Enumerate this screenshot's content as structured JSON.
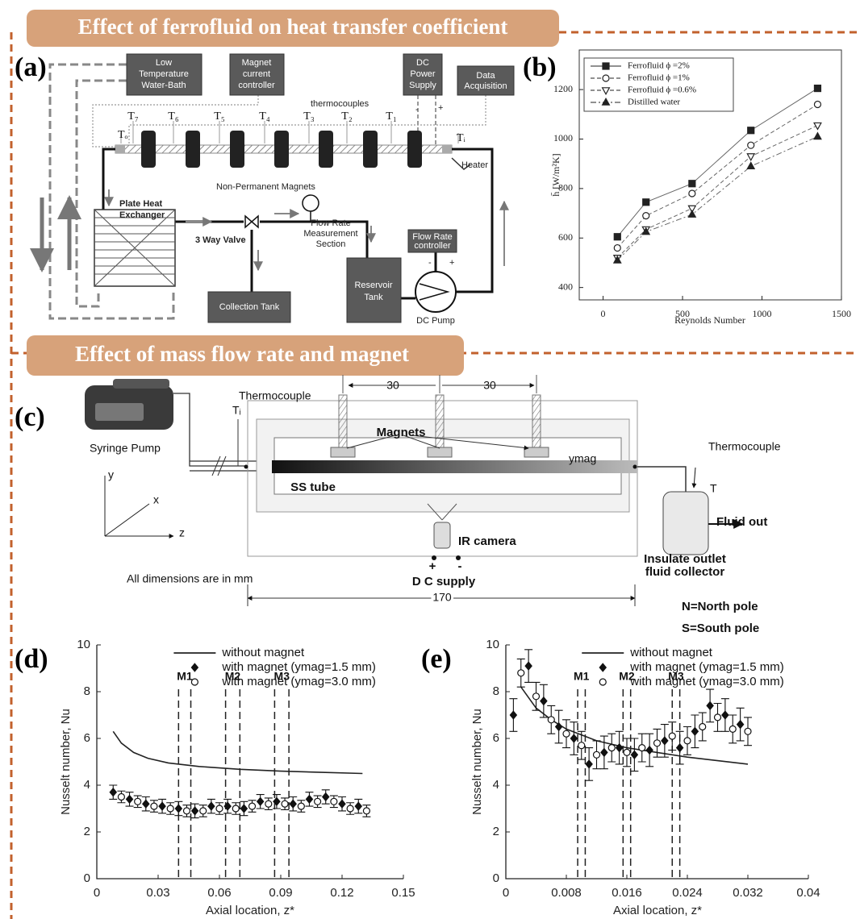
{
  "headers": [
    "Effect of ferrofluid on heat transfer coefficient",
    "Effect of mass flow rate and magnet"
  ],
  "panel_labels": [
    "(a)",
    "(b)",
    "(c)",
    "(d)",
    "(e)"
  ],
  "diagram_a": {
    "boxes": [
      [
        "Low",
        "Temperature",
        "Water-Bath"
      ],
      [
        "Magnet",
        "current",
        "controller"
      ],
      [
        "DC",
        "Power",
        "Supply"
      ],
      [
        "Data",
        "Acquisition"
      ],
      [
        "Collection Tank"
      ],
      [
        "Flow Rate",
        "controller"
      ],
      [
        "Reservoir",
        "Tank"
      ]
    ],
    "thermocouples": [
      "T₇",
      "T₆",
      "T₅",
      "T₄",
      "T₃",
      "T₂",
      "T₁"
    ],
    "labels": [
      "thermocouples",
      "Tₒ",
      "Tᵢ",
      "Heater",
      "Non-Permanent Magnets",
      "Plate Heat",
      "Exchanger",
      "3 Way Valve",
      "Flow Rate",
      "Measurement",
      "Section",
      "DC Pump",
      "-",
      "+",
      "-",
      "+"
    ]
  },
  "diagram_c": {
    "labels": [
      "Syringe Pump",
      "Thermocouple",
      "Tᵢ",
      "30",
      "30",
      "Magnets",
      "ymag",
      "SS tube",
      "Thermocouple",
      "T",
      "Fluid out",
      "Insulate outlet",
      "fluid collector",
      "IR camera",
      "+",
      "-",
      "D C supply",
      "All dimensions are in mm",
      "170",
      "y",
      "x",
      "z",
      "N=North pole",
      "S=South pole"
    ]
  },
  "chart_data": [
    {
      "type": "line",
      "x_label": "Reynolds Number",
      "y_label": "h̄ [W/m²K]",
      "xlim": [
        -150,
        1500
      ],
      "xticks": [
        0,
        500,
        1000,
        1500
      ],
      "ylim": [
        350,
        1360
      ],
      "yticks": [
        400,
        600,
        800,
        1000,
        1200
      ],
      "legend": "upper left",
      "legend_frame": true,
      "x": [
        90,
        270,
        560,
        930,
        1350
      ],
      "series": [
        {
          "name": "Ferrofluid ϕ =2%",
          "color": "#222222",
          "marker": "square",
          "filled": true,
          "dash": "solid",
          "values": [
            605,
            745,
            820,
            1035,
            1205
          ]
        },
        {
          "name": "Ferrofluid ϕ =1%",
          "color": "#222222",
          "marker": "circle",
          "filled": false,
          "dash": "dashed",
          "values": [
            560,
            690,
            780,
            975,
            1140
          ]
        },
        {
          "name": "Ferrofluid ϕ =0.6%",
          "color": "#222222",
          "marker": "triangle-down",
          "filled": false,
          "dash": "dashed",
          "values": [
            520,
            635,
            720,
            930,
            1055
          ]
        },
        {
          "name": "Distilled water",
          "color": "#222222",
          "marker": "triangle-up",
          "filled": true,
          "dash": "dashdot",
          "values": [
            510,
            625,
            695,
            890,
            1010
          ]
        }
      ]
    },
    {
      "type": "line",
      "x_label": "Axial location, z*",
      "y_label": "Nusselt number, Nu",
      "xlim": [
        0,
        0.15
      ],
      "xticks": [
        0,
        0.03,
        0.06,
        0.09,
        0.12,
        0.15
      ],
      "ylim": [
        0,
        10
      ],
      "yticks": [
        0,
        2,
        4,
        6,
        8,
        10
      ],
      "legend": "upper center",
      "legend_frame": false,
      "series": [
        {
          "name": "without magnet",
          "color": "#222222",
          "marker": "none",
          "dash": "solid",
          "x": [
            0.008,
            0.012,
            0.018,
            0.025,
            0.035,
            0.05,
            0.07,
            0.09,
            0.11,
            0.13
          ],
          "values": [
            6.3,
            5.8,
            5.4,
            5.15,
            4.95,
            4.8,
            4.68,
            4.6,
            4.55,
            4.5
          ]
        },
        {
          "name": "with magnet (ymag=1.5 mm)",
          "color": "#111111",
          "marker": "diamond",
          "filled": true,
          "dash": "none",
          "x": [
            0.008,
            0.016,
            0.024,
            0.032,
            0.04,
            0.048,
            0.056,
            0.064,
            0.072,
            0.08,
            0.088,
            0.096,
            0.104,
            0.112,
            0.12,
            0.128
          ],
          "values": [
            3.7,
            3.4,
            3.2,
            3.1,
            3.0,
            2.9,
            3.1,
            3.1,
            3.0,
            3.3,
            3.3,
            3.2,
            3.4,
            3.5,
            3.2,
            3.1
          ],
          "errors": [
            0.3,
            0.3,
            0.3,
            0.3,
            0.3,
            0.3,
            0.3,
            0.3,
            0.3,
            0.3,
            0.3,
            0.3,
            0.3,
            0.3,
            0.3,
            0.3
          ]
        },
        {
          "name": "with magnet (ymag=3.0 mm)",
          "color": "#111111",
          "marker": "circle",
          "filled": false,
          "dash": "none",
          "x": [
            0.012,
            0.02,
            0.028,
            0.036,
            0.044,
            0.052,
            0.06,
            0.068,
            0.076,
            0.084,
            0.092,
            0.1,
            0.108,
            0.116,
            0.124,
            0.132
          ],
          "values": [
            3.5,
            3.3,
            3.1,
            3.0,
            2.9,
            2.9,
            3.0,
            3.0,
            3.1,
            3.2,
            3.2,
            3.1,
            3.3,
            3.3,
            3.0,
            2.9
          ],
          "errors": [
            0.25,
            0.25,
            0.25,
            0.25,
            0.25,
            0.25,
            0.25,
            0.25,
            0.25,
            0.25,
            0.25,
            0.25,
            0.25,
            0.25,
            0.25,
            0.25
          ]
        }
      ],
      "annotations": [
        {
          "label": "M1",
          "x": [
            0.04,
            0.046
          ]
        },
        {
          "label": "M2",
          "x": [
            0.063,
            0.07
          ]
        },
        {
          "label": "M3",
          "x": [
            0.087,
            0.094
          ]
        }
      ]
    },
    {
      "type": "line",
      "x_label": "Axial location, z*",
      "y_label": "Nusselt number, Nu",
      "xlim": [
        0,
        0.04
      ],
      "xticks": [
        0,
        0.008,
        0.016,
        0.024,
        0.032,
        0.04
      ],
      "ylim": [
        0,
        10
      ],
      "yticks": [
        0,
        2,
        4,
        6,
        8,
        10
      ],
      "legend": "upper center",
      "legend_frame": false,
      "series": [
        {
          "name": "without magnet",
          "color": "#222222",
          "marker": "none",
          "dash": "solid",
          "x": [
            0.002,
            0.004,
            0.006,
            0.008,
            0.012,
            0.016,
            0.02,
            0.024,
            0.028,
            0.032
          ],
          "values": [
            8.2,
            7.3,
            6.8,
            6.4,
            5.9,
            5.6,
            5.4,
            5.2,
            5.05,
            4.9
          ]
        },
        {
          "name": "with magnet (ymag=1.5 mm)",
          "color": "#111111",
          "marker": "diamond",
          "filled": true,
          "dash": "none",
          "x": [
            0.001,
            0.003,
            0.005,
            0.007,
            0.009,
            0.011,
            0.013,
            0.015,
            0.017,
            0.019,
            0.021,
            0.023,
            0.025,
            0.027,
            0.029,
            0.031
          ],
          "values": [
            7.0,
            9.1,
            7.6,
            6.5,
            6.0,
            4.9,
            5.4,
            5.6,
            5.3,
            5.5,
            5.9,
            5.6,
            6.3,
            7.4,
            7.0,
            6.6
          ],
          "errors": [
            0.7,
            0.7,
            0.7,
            0.7,
            0.7,
            0.7,
            0.7,
            0.7,
            0.7,
            0.7,
            0.7,
            0.7,
            0.7,
            0.7,
            0.7,
            0.7
          ]
        },
        {
          "name": "with magnet (ymag=3.0 mm)",
          "color": "#111111",
          "marker": "circle",
          "filled": false,
          "dash": "none",
          "x": [
            0.002,
            0.004,
            0.006,
            0.008,
            0.01,
            0.012,
            0.014,
            0.016,
            0.018,
            0.02,
            0.022,
            0.024,
            0.026,
            0.028,
            0.03,
            0.032
          ],
          "values": [
            8.8,
            7.8,
            6.8,
            6.2,
            5.7,
            5.3,
            5.6,
            5.4,
            5.6,
            5.8,
            6.1,
            5.9,
            6.5,
            6.9,
            6.4,
            6.3
          ],
          "errors": [
            0.6,
            0.6,
            0.6,
            0.6,
            0.6,
            0.6,
            0.6,
            0.6,
            0.6,
            0.6,
            0.6,
            0.6,
            0.6,
            0.6,
            0.6,
            0.6
          ]
        }
      ],
      "annotations": [
        {
          "label": "M1",
          "x": [
            0.0095,
            0.0105
          ]
        },
        {
          "label": "M2",
          "x": [
            0.0155,
            0.0165
          ]
        },
        {
          "label": "M3",
          "x": [
            0.022,
            0.023
          ]
        }
      ]
    }
  ]
}
